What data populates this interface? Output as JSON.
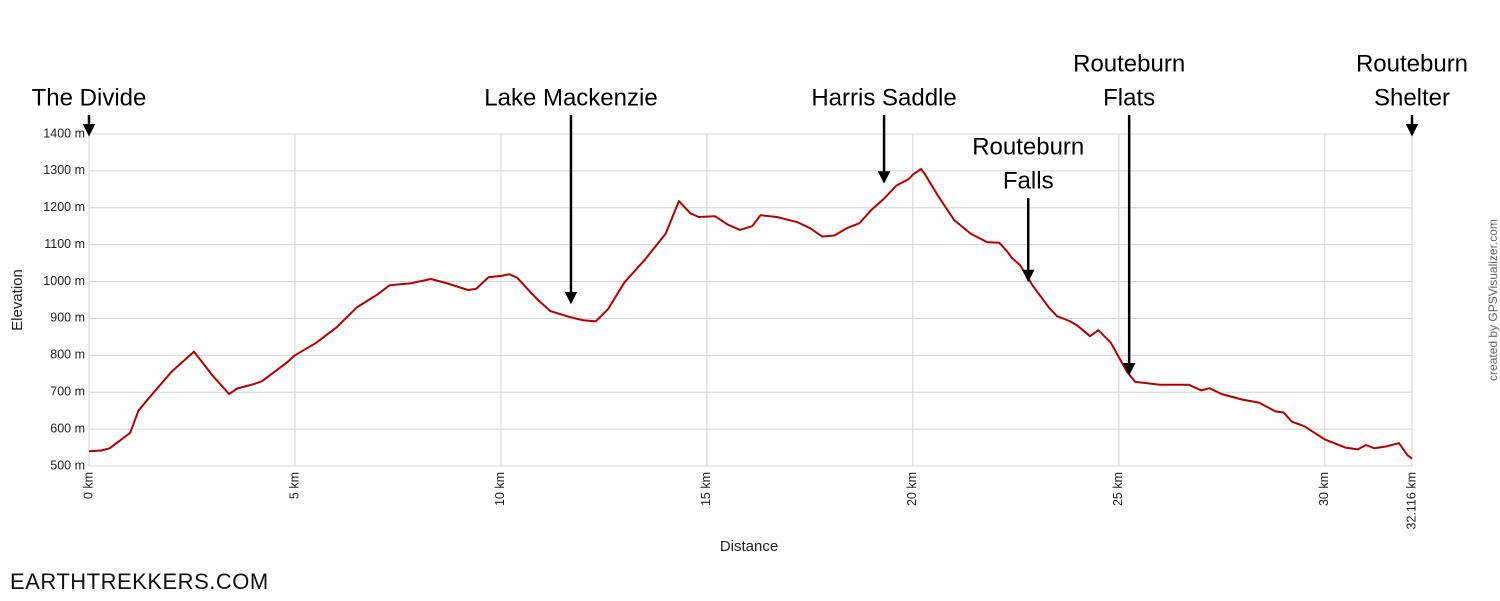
{
  "chart_data": {
    "type": "line",
    "x_label": "Distance",
    "y_label": "Elevation",
    "credit": "created by GPSVisualizer.com",
    "footer": "EARTHTREKKERS.COM",
    "color": "#b80000",
    "grid": true,
    "xlim": [
      0,
      32.116
    ],
    "ylim": [
      500,
      1400
    ],
    "xticks": [
      {
        "value": 0,
        "label": "0 km"
      },
      {
        "value": 5,
        "label": "5 km"
      },
      {
        "value": 10,
        "label": "10 km"
      },
      {
        "value": 15,
        "label": "15 km"
      },
      {
        "value": 20,
        "label": "20 km"
      },
      {
        "value": 25,
        "label": "25 km"
      },
      {
        "value": 30,
        "label": "30 km"
      },
      {
        "value": 32.116,
        "label": "32.116 km"
      }
    ],
    "yticks": [
      {
        "value": 500,
        "label": "500 m"
      },
      {
        "value": 600,
        "label": "600 m"
      },
      {
        "value": 700,
        "label": "700 m"
      },
      {
        "value": 800,
        "label": "800 m"
      },
      {
        "value": 900,
        "label": "900 m"
      },
      {
        "value": 1000,
        "label": "1000 m"
      },
      {
        "value": 1100,
        "label": "1100 m"
      },
      {
        "value": 1200,
        "label": "1200 m"
      },
      {
        "value": 1300,
        "label": "1300 m"
      },
      {
        "value": 1400,
        "label": "1400 m"
      }
    ],
    "x": [
      0,
      0.3,
      0.5,
      1.0,
      1.2,
      1.5,
      2.0,
      2.55,
      3.0,
      3.4,
      3.6,
      4.0,
      4.2,
      4.8,
      5.0,
      5.5,
      6.0,
      6.5,
      7.0,
      7.3,
      7.8,
      8.3,
      8.7,
      9.2,
      9.4,
      9.7,
      10.0,
      10.2,
      10.4,
      10.6,
      10.9,
      11.2,
      11.6,
      11.8,
      12.0,
      12.3,
      12.6,
      13.0,
      13.5,
      14.0,
      14.32,
      14.6,
      14.8,
      15.2,
      15.5,
      15.8,
      16.1,
      16.3,
      16.7,
      17.2,
      17.5,
      17.8,
      18.1,
      18.4,
      18.7,
      19.0,
      19.3,
      19.6,
      19.9,
      20.0,
      20.2,
      20.3,
      20.6,
      21.0,
      21.4,
      21.8,
      22.1,
      22.3,
      22.4,
      22.6,
      22.9,
      23.1,
      23.3,
      23.5,
      23.8,
      24.0,
      24.3,
      24.5,
      24.8,
      25.0,
      25.2,
      25.4,
      26.0,
      26.7,
      27.0,
      27.2,
      27.5,
      28.0,
      28.4,
      28.8,
      29.0,
      29.2,
      29.5,
      30.0,
      30.5,
      30.8,
      31.0,
      31.2,
      31.5,
      31.8,
      32.0,
      32.116
    ],
    "values": [
      540,
      542,
      548,
      590,
      650,
      690,
      755,
      810,
      745,
      695,
      710,
      722,
      730,
      780,
      800,
      833,
      875,
      930,
      965,
      990,
      995,
      1007,
      995,
      977,
      980,
      1012,
      1015,
      1020,
      1010,
      985,
      950,
      920,
      906,
      900,
      895,
      892,
      925,
      998,
      1060,
      1130,
      1218,
      1185,
      1175,
      1177,
      1155,
      1140,
      1150,
      1180,
      1175,
      1161,
      1145,
      1122,
      1125,
      1145,
      1158,
      1195,
      1225,
      1260,
      1278,
      1290,
      1305,
      1290,
      1234,
      1167,
      1130,
      1107,
      1105,
      1080,
      1064,
      1045,
      990,
      960,
      930,
      906,
      893,
      880,
      852,
      868,
      835,
      795,
      755,
      728,
      720,
      720,
      705,
      711,
      695,
      680,
      672,
      648,
      645,
      620,
      608,
      572,
      550,
      545,
      557,
      548,
      553,
      562,
      530,
      520
    ],
    "annotations": [
      {
        "text": [
          "The Divide"
        ],
        "x": 0,
        "y": 1400
      },
      {
        "text": [
          "Lake Mackenzie"
        ],
        "x": 11.7,
        "y": 945
      },
      {
        "text": [
          "Harris Saddle"
        ],
        "x": 19.3,
        "y": 1272
      },
      {
        "text": [
          "Routeburn",
          "Falls"
        ],
        "x": 22.8,
        "y": 1005
      },
      {
        "text": [
          "Routeburn",
          "Flats"
        ],
        "x": 25.25,
        "y": 752
      },
      {
        "text": [
          "Routeburn",
          "Shelter"
        ],
        "x": 32.116,
        "y": 1400
      }
    ]
  }
}
